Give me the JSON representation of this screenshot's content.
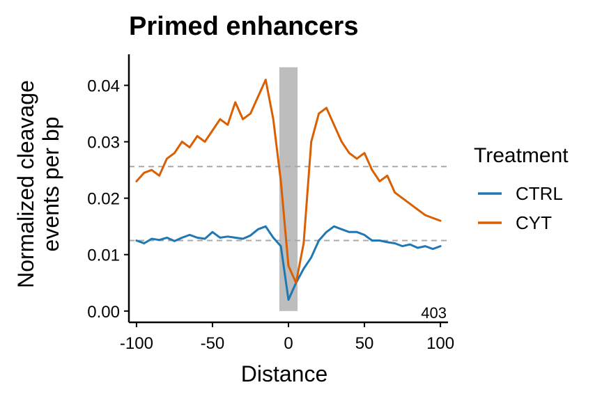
{
  "chart_data": {
    "type": "line",
    "title": "Primed enhancers",
    "xlabel": "Distance",
    "ylabel_lines": [
      "Normalized cleavage",
      "events per bp"
    ],
    "xlim": [
      -105,
      105
    ],
    "ylim": [
      -0.002,
      0.0455
    ],
    "x_ticks": [
      -100,
      -50,
      0,
      50,
      100
    ],
    "x_tick_labels": [
      "-100",
      "-50",
      "0",
      "50",
      "100"
    ],
    "y_ticks": [
      0.0,
      0.01,
      0.02,
      0.03,
      0.04
    ],
    "y_tick_labels": [
      "0.00",
      "0.01",
      "0.02",
      "0.03",
      "0.04"
    ],
    "grid": false,
    "legend": {
      "title": "Treatment",
      "position": "right"
    },
    "highlight_band": {
      "x_range": [
        -6,
        6
      ],
      "y_range": [
        0.0,
        0.0432
      ],
      "color": "#bdbdbd"
    },
    "reference_lines": [
      0.0256,
      0.0125
    ],
    "annotation": "403",
    "x": [
      -100,
      -95,
      -90,
      -85,
      -80,
      -75,
      -70,
      -65,
      -60,
      -55,
      -50,
      -45,
      -40,
      -35,
      -30,
      -25,
      -20,
      -15,
      -10,
      -5,
      0,
      5,
      10,
      15,
      20,
      25,
      30,
      35,
      40,
      45,
      50,
      55,
      60,
      65,
      70,
      75,
      80,
      85,
      90,
      95,
      100
    ],
    "series": [
      {
        "name": "CTRL",
        "color": "#1f77b4",
        "values": [
          0.0125,
          0.012,
          0.0128,
          0.0126,
          0.013,
          0.0124,
          0.013,
          0.0135,
          0.013,
          0.0128,
          0.014,
          0.013,
          0.0132,
          0.013,
          0.0128,
          0.0134,
          0.0145,
          0.015,
          0.013,
          0.0115,
          0.002,
          0.005,
          0.0075,
          0.0095,
          0.0125,
          0.014,
          0.015,
          0.0145,
          0.014,
          0.014,
          0.0135,
          0.0125,
          0.0125,
          0.0122,
          0.012,
          0.0115,
          0.0118,
          0.0112,
          0.0115,
          0.011,
          0.0115
        ]
      },
      {
        "name": "CYT",
        "color": "#d95f02",
        "values": [
          0.023,
          0.0245,
          0.025,
          0.024,
          0.027,
          0.028,
          0.03,
          0.029,
          0.031,
          0.03,
          0.032,
          0.034,
          0.033,
          0.037,
          0.034,
          0.035,
          0.038,
          0.041,
          0.034,
          0.023,
          0.008,
          0.005,
          0.012,
          0.03,
          0.035,
          0.036,
          0.033,
          0.03,
          0.028,
          0.027,
          0.028,
          0.025,
          0.023,
          0.024,
          0.021,
          0.02,
          0.019,
          0.018,
          0.017,
          0.0165,
          0.016
        ]
      }
    ]
  }
}
